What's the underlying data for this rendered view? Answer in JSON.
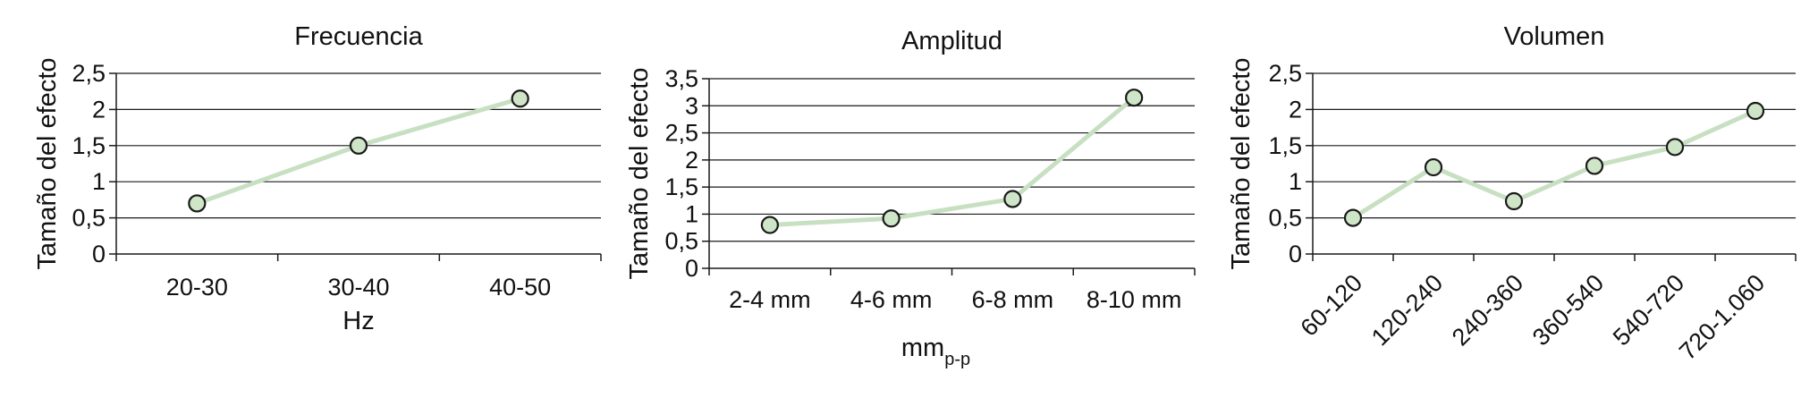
{
  "style": {
    "line_color": "#c8e0c2",
    "marker_fill": "#cfe5c8",
    "marker_stroke": "#1a1a1a",
    "grid_color": "#1a1a1a",
    "axis_color": "#1a1a1a"
  },
  "chart_data": [
    {
      "type": "line",
      "title": "Frecuencia",
      "ylabel": "Tamaño del efecto",
      "xlabel": "Hz",
      "xlabel_sub": "",
      "categories": [
        "20-30",
        "30-40",
        "40-50"
      ],
      "values": [
        0.7,
        1.5,
        2.15
      ],
      "ylim": [
        0,
        2.5
      ],
      "yticks": [
        "0",
        "0,5",
        "1",
        "1,5",
        "2",
        "2,5"
      ],
      "grid": true,
      "xtick_rotation": 0
    },
    {
      "type": "line",
      "title": "Amplitud",
      "ylabel": "Tamaño del efecto",
      "xlabel": "mm",
      "xlabel_sub": "p-p",
      "categories": [
        "2-4 mm",
        "4-6 mm",
        "6-8 mm",
        "8-10 mm"
      ],
      "values": [
        0.8,
        0.92,
        1.28,
        3.15
      ],
      "ylim": [
        0,
        3.5
      ],
      "yticks": [
        "0",
        "0,5",
        "1",
        "1,5",
        "2",
        "2,5",
        "3",
        "3,5"
      ],
      "grid": true,
      "xtick_rotation": 0
    },
    {
      "type": "line",
      "title": "Volumen",
      "ylabel": "Tamaño del efecto",
      "xlabel": "",
      "xlabel_sub": "",
      "categories": [
        "60-120",
        "120-240",
        "240-360",
        "360-540",
        "540-720",
        "720-1.060"
      ],
      "values": [
        0.5,
        1.2,
        0.73,
        1.22,
        1.48,
        1.98
      ],
      "ylim": [
        0,
        2.5
      ],
      "yticks": [
        "0",
        "0,5",
        "1",
        "1,5",
        "2",
        "2,5"
      ],
      "grid": true,
      "xtick_rotation": -45
    }
  ]
}
